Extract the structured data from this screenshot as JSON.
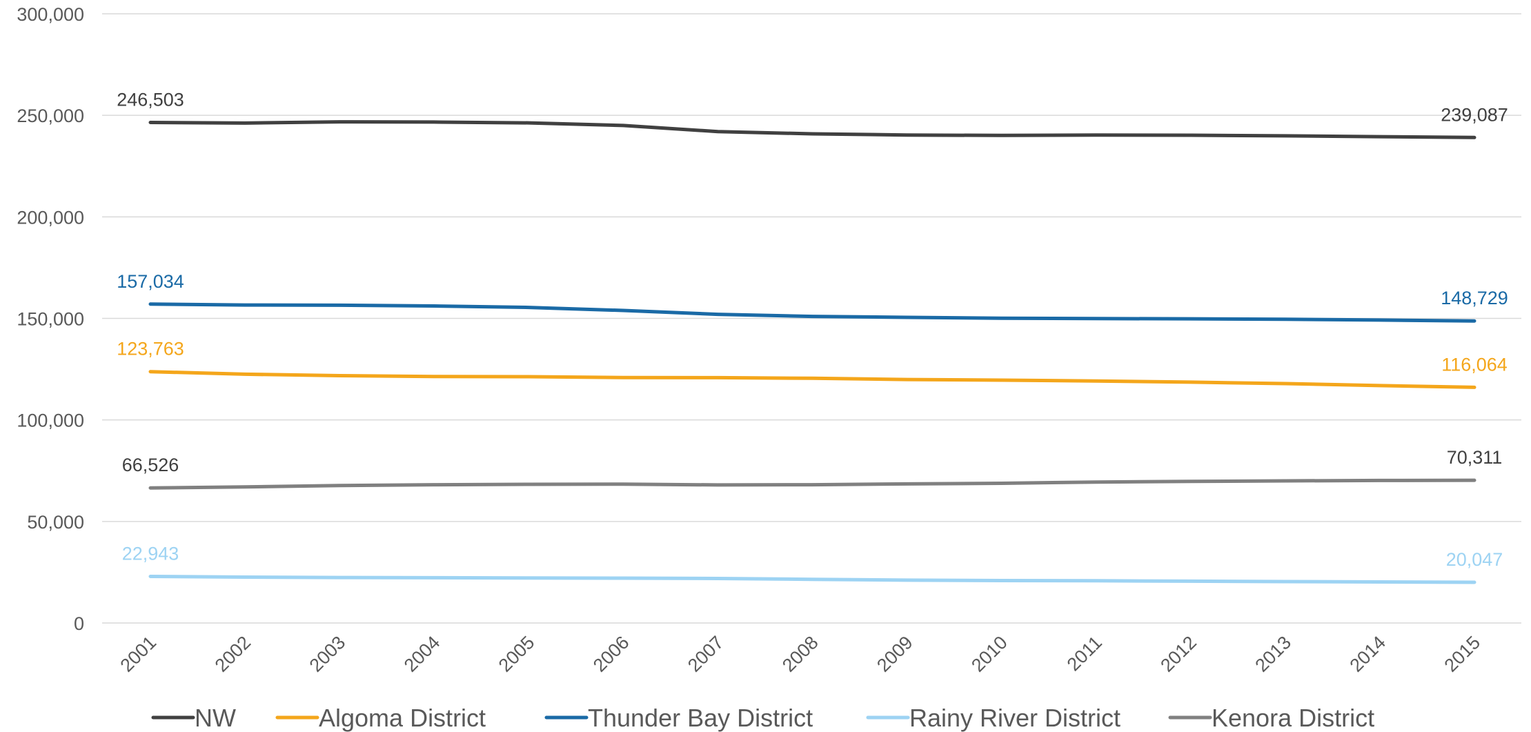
{
  "chart_data": {
    "type": "line",
    "title": "",
    "xlabel": "",
    "ylabel": "",
    "x": [
      "2001",
      "2002",
      "2003",
      "2004",
      "2005",
      "2006",
      "2007",
      "2008",
      "2009",
      "2010",
      "2011",
      "2012",
      "2013",
      "2014",
      "2015"
    ],
    "ylim": [
      0,
      300000
    ],
    "yticks": [
      {
        "value": 0,
        "label": "0"
      },
      {
        "value": 50000,
        "label": "50,000"
      },
      {
        "value": 100000,
        "label": "100,000"
      },
      {
        "value": 150000,
        "label": "150,000"
      },
      {
        "value": 200000,
        "label": "200,000"
      },
      {
        "value": 250000,
        "label": "250,000"
      },
      {
        "value": 300000,
        "label": "300,000"
      }
    ],
    "grid": "horizontal",
    "legend_position": "bottom",
    "series": [
      {
        "name": "NW",
        "color": "#404040",
        "values": [
          246503,
          246200,
          246800,
          246700,
          246300,
          245000,
          242000,
          240900,
          240300,
          240100,
          240300,
          240200,
          239900,
          239500,
          239087
        ],
        "first_label": "246,503",
        "last_label": "239,087"
      },
      {
        "name": "Algoma District",
        "color": "#f4a61b",
        "values": [
          123763,
          122500,
          121800,
          121400,
          121300,
          120900,
          120800,
          120500,
          119900,
          119600,
          119200,
          118600,
          117900,
          116900,
          116064
        ],
        "first_label": "123,763",
        "last_label": "116,064"
      },
      {
        "name": "Thunder Bay District",
        "color": "#1a6aa6",
        "values": [
          157034,
          156600,
          156500,
          156100,
          155400,
          153900,
          152000,
          151000,
          150500,
          150100,
          149900,
          149800,
          149600,
          149200,
          148729
        ],
        "first_label": "157,034",
        "last_label": "148,729"
      },
      {
        "name": "Rainy River District",
        "color": "#9dd3f3",
        "values": [
          22943,
          22600,
          22400,
          22300,
          22200,
          22100,
          21900,
          21500,
          21100,
          20900,
          20800,
          20600,
          20400,
          20200,
          20047
        ],
        "first_label": "22,943",
        "last_label": "20,047"
      },
      {
        "name": "Kenora District",
        "color": "#808080",
        "values": [
          66526,
          67000,
          67700,
          68100,
          68300,
          68400,
          68000,
          68100,
          68500,
          68800,
          69400,
          69700,
          70000,
          70200,
          70311
        ],
        "first_label": "66,526",
        "last_label": "70,311"
      }
    ]
  }
}
